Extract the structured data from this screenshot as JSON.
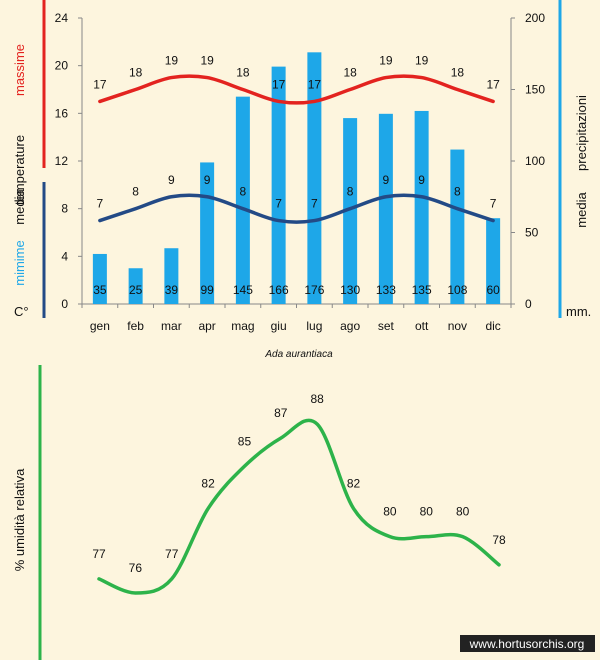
{
  "chart_data": [
    {
      "type": "bar+line",
      "categories": [
        "gen",
        "feb",
        "mar",
        "apr",
        "mag",
        "giu",
        "lug",
        "ago",
        "set",
        "ott",
        "nov",
        "dic"
      ],
      "left_axis": {
        "labels": [
          "massime",
          "temperature",
          "media",
          "mimime",
          "C°"
        ],
        "ylim": [
          0,
          24
        ],
        "ticks": [
          0,
          4,
          8,
          12,
          16,
          20,
          24
        ]
      },
      "right_axis": {
        "labels": [
          "media",
          "precipitazioni",
          "mm."
        ],
        "ylim": [
          0,
          200
        ],
        "ticks": [
          0,
          50,
          100,
          150,
          200
        ]
      },
      "series": [
        {
          "kind": "bar",
          "axis": "right",
          "color": "#1ea7e8",
          "values": [
            35,
            25,
            39,
            99,
            145,
            166,
            176,
            130,
            133,
            135,
            108,
            60
          ]
        },
        {
          "kind": "line",
          "axis": "left",
          "color": "#e3231f",
          "values": [
            17,
            18,
            19,
            19,
            18,
            17,
            17,
            18,
            19,
            19,
            18,
            17
          ]
        },
        {
          "kind": "line",
          "axis": "left",
          "color": "#234a86",
          "values": [
            7,
            8,
            9,
            9,
            8,
            7,
            7,
            8,
            9,
            9,
            8,
            7
          ]
        }
      ],
      "caption": "Ada aurantiaca"
    },
    {
      "type": "line",
      "ylabel": "% umidità relativa",
      "color": "#2db34a",
      "values": [
        77,
        76,
        77,
        82,
        85,
        87,
        88,
        82,
        80,
        80,
        80,
        78
      ]
    }
  ],
  "colors": {
    "background": "#fdf5de",
    "red": "#e3231f",
    "navy": "#234a86",
    "blue": "#1ea7e8",
    "green": "#2db34a"
  },
  "watermark": "www.hortusorchis.org"
}
